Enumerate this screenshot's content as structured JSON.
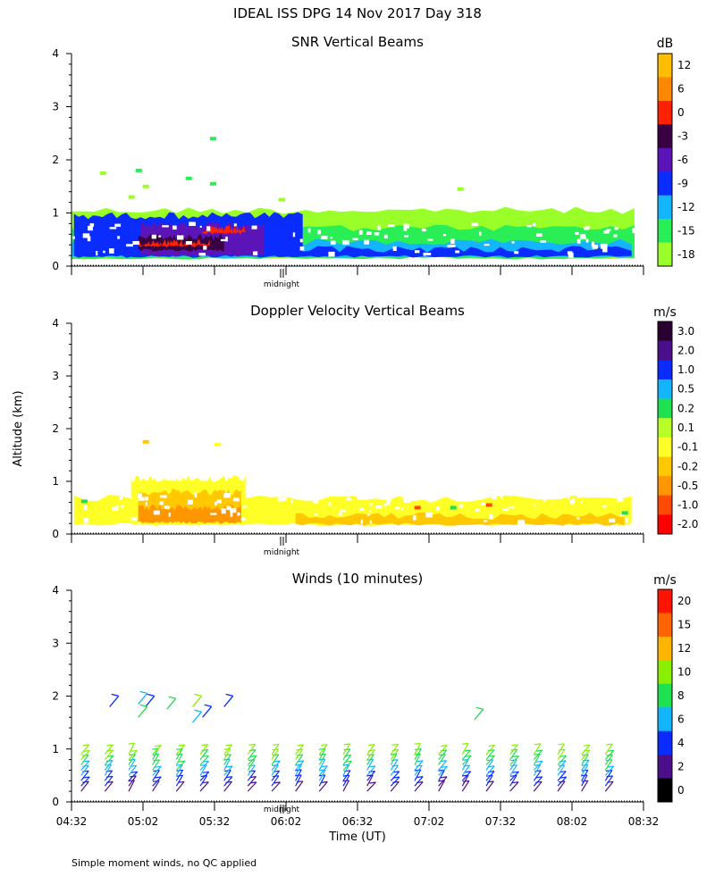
{
  "page": {
    "title": "IDEAL ISS DPG  14 Nov 2017 Day 318",
    "y_axis_label": "Altitude (km)",
    "x_axis_label": "Time (UT)",
    "midnight_label": "midnight",
    "footnote": "Simple moment winds, no QC applied"
  },
  "chart_data": [
    {
      "type": "heatmap",
      "title": "SNR Vertical Beams",
      "xlabel": "",
      "ylabel": "Altitude (km)",
      "ylim": [
        0,
        4
      ],
      "yticks": [
        "0",
        "1",
        "2",
        "3",
        "4"
      ],
      "xlim": [
        "04:32",
        "08:32"
      ],
      "colorbar": {
        "unit": "dB",
        "labels": [
          "12",
          "6",
          "0",
          "-3",
          "-6",
          "-9",
          "-12",
          "-15",
          "-18"
        ],
        "colors": [
          "#ffbf00",
          "#ff8800",
          "#ff2200",
          "#3a0044",
          "#5a14b8",
          "#0a2cff",
          "#14b4ff",
          "#2aee55",
          "#9aff28"
        ]
      },
      "layers": [
        {
          "t0": 4.53,
          "t1": 8.47,
          "z0": 0.15,
          "z1": 1.05,
          "color": "#9aff28"
        },
        {
          "t0": 4.53,
          "t1": 8.47,
          "z0": 0.15,
          "z1": 0.72,
          "color": "#2aee55"
        },
        {
          "t0": 4.53,
          "t1": 8.45,
          "z0": 0.18,
          "z1": 0.45,
          "color": "#14b4ff"
        },
        {
          "t0": 4.55,
          "t1": 6.15,
          "z0": 0.18,
          "z1": 0.95,
          "color": "#0a2cff"
        },
        {
          "t0": 5.02,
          "t1": 5.88,
          "z0": 0.2,
          "z1": 0.78,
          "color": "#5a14b8"
        },
        {
          "t0": 5.0,
          "t1": 5.6,
          "z0": 0.3,
          "z1": 0.55,
          "color": "#3a0044"
        },
        {
          "t0": 5.0,
          "t1": 5.5,
          "z0": 0.38,
          "z1": 0.45,
          "color": "#ff2200"
        },
        {
          "t0": 5.45,
          "t1": 5.75,
          "z0": 0.62,
          "z1": 0.7,
          "color": "#ff2200"
        },
        {
          "t0": 6.0,
          "t1": 8.45,
          "z0": 0.18,
          "z1": 0.32,
          "color": "#0a2cff"
        }
      ],
      "echoes": [
        {
          "t": 5.0,
          "z": 1.8,
          "color": "#2aee55"
        },
        {
          "t": 5.35,
          "z": 1.65,
          "color": "#2aee55"
        },
        {
          "t": 5.52,
          "z": 1.55,
          "color": "#2aee55"
        },
        {
          "t": 5.52,
          "z": 2.4,
          "color": "#2aee55"
        },
        {
          "t": 4.75,
          "z": 1.75,
          "color": "#9aff28"
        },
        {
          "t": 5.05,
          "z": 1.5,
          "color": "#9aff28"
        },
        {
          "t": 4.95,
          "z": 1.3,
          "color": "#9aff28"
        },
        {
          "t": 6.0,
          "z": 1.25,
          "color": "#9aff28"
        },
        {
          "t": 7.25,
          "z": 1.45,
          "color": "#9aff28"
        }
      ]
    },
    {
      "type": "heatmap",
      "title": "Doppler Velocity Vertical Beams",
      "xlabel": "",
      "ylabel": "Altitude (km)",
      "ylim": [
        0,
        4
      ],
      "yticks": [
        "0",
        "1",
        "2",
        "3",
        "4"
      ],
      "xlim": [
        "04:32",
        "08:32"
      ],
      "colorbar": {
        "unit": "m/s",
        "labels": [
          "3.0",
          "2.0",
          "1.0",
          "0.5",
          "0.2",
          "0.1",
          "-0.1",
          "-0.2",
          "-0.5",
          "-1.0",
          "-2.0"
        ],
        "colors": [
          "#2a0030",
          "#4b0f8a",
          "#0a2cff",
          "#14b4ff",
          "#1ee050",
          "#b8ff28",
          "#ffff28",
          "#ffc800",
          "#ff9600",
          "#ff4a00",
          "#ff0000"
        ]
      },
      "layers": [
        {
          "t0": 4.55,
          "t1": 8.45,
          "z0": 0.18,
          "z1": 0.68,
          "color": "#ffff28"
        },
        {
          "t0": 4.95,
          "t1": 5.75,
          "z0": 0.18,
          "z1": 1.05,
          "color": "#ffff28"
        },
        {
          "t0": 5.0,
          "t1": 5.72,
          "z0": 0.22,
          "z1": 0.8,
          "color": "#ffc800"
        },
        {
          "t0": 5.0,
          "t1": 5.72,
          "z0": 0.22,
          "z1": 0.5,
          "color": "#ff9600"
        },
        {
          "t0": 6.1,
          "t1": 8.4,
          "z0": 0.18,
          "z1": 0.35,
          "color": "#ffc800"
        }
      ],
      "echoes": [
        {
          "t": 5.05,
          "z": 1.75,
          "color": "#ffc800"
        },
        {
          "t": 5.55,
          "z": 1.7,
          "color": "#ffff28"
        },
        {
          "t": 4.62,
          "z": 0.62,
          "color": "#1ee050"
        },
        {
          "t": 7.2,
          "z": 0.5,
          "color": "#1ee050"
        },
        {
          "t": 8.4,
          "z": 0.4,
          "color": "#1ee050"
        },
        {
          "t": 6.95,
          "z": 0.5,
          "color": "#ff4a00"
        },
        {
          "t": 7.45,
          "z": 0.55,
          "color": "#ff4a00"
        }
      ]
    },
    {
      "type": "scatter",
      "title": "Winds (10 minutes)",
      "xlabel": "Time (UT)",
      "ylabel": "Altitude (km)",
      "ylim": [
        0,
        4
      ],
      "yticks": [
        "0",
        "1",
        "2",
        "3",
        "4"
      ],
      "xticks": [
        "04:32",
        "05:02",
        "05:32",
        "06:02",
        "06:32",
        "07:02",
        "07:32",
        "08:02",
        "08:32"
      ],
      "colorbar": {
        "unit": "m/s",
        "labels": [
          "20",
          "15",
          "12",
          "10",
          "8",
          "6",
          "4",
          "2",
          "0"
        ],
        "colors": [
          "#ff1400",
          "#ff6400",
          "#ffb400",
          "#88f000",
          "#1ee050",
          "#14b4ff",
          "#0a2cff",
          "#4b0f8a",
          "#000000"
        ]
      },
      "profile_times": [
        "04:36",
        "04:46",
        "04:56",
        "05:06",
        "05:16",
        "05:26",
        "05:36",
        "05:46",
        "05:56",
        "06:06",
        "06:16",
        "06:26",
        "06:36",
        "06:46",
        "06:56",
        "07:06",
        "07:16",
        "07:26",
        "07:36",
        "07:46",
        "07:56",
        "08:06",
        "08:16"
      ],
      "profile_altitudes_km": [
        0.2,
        0.3,
        0.4,
        0.5,
        0.6,
        0.7,
        0.8,
        0.9
      ],
      "upper_barbs": [
        {
          "t": 4.8,
          "z": 1.8,
          "speed_ms": 4
        },
        {
          "t": 5.0,
          "z": 1.85,
          "speed_ms": 8
        },
        {
          "t": 5.05,
          "z": 1.8,
          "speed_ms": 4
        },
        {
          "t": 5.0,
          "z": 1.6,
          "speed_ms": 10
        },
        {
          "t": 5.2,
          "z": 1.75,
          "speed_ms": 10
        },
        {
          "t": 5.38,
          "z": 1.8,
          "speed_ms": 12
        },
        {
          "t": 5.38,
          "z": 1.5,
          "speed_ms": 8
        },
        {
          "t": 5.45,
          "z": 1.6,
          "speed_ms": 4
        },
        {
          "t": 5.6,
          "z": 1.8,
          "speed_ms": 4
        },
        {
          "t": 7.35,
          "z": 1.55,
          "speed_ms": 10
        }
      ]
    }
  ]
}
